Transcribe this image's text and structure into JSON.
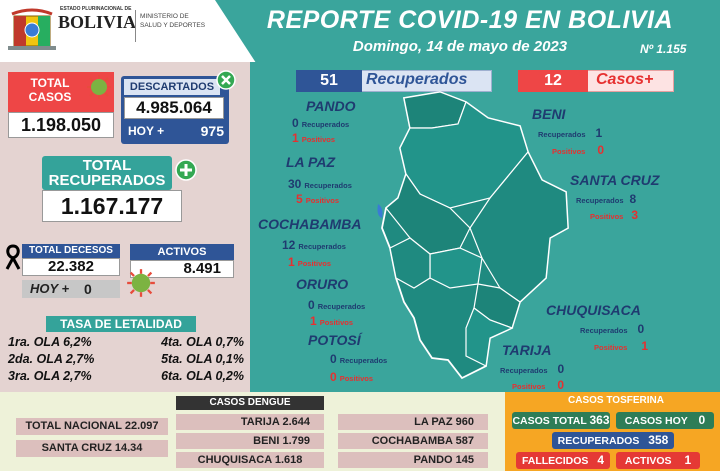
{
  "header": {
    "logo_subtitle": "ESTADO PLURINACIONAL DE",
    "logo_name": "BOLIVIA",
    "ministry": [
      "MINISTERIO DE",
      "SALUD Y DEPORTES"
    ],
    "title": "REPORTE COVID-19 EN BOLIVIA",
    "date": "Domingo, 14 de mayo de 2023",
    "report_number": "Nº 1.155"
  },
  "left": {
    "total_casos_label": "TOTAL CASOS",
    "total_casos": "1.198.050",
    "descartados_label": "DESCARTADOS",
    "descartados": "4.985.064",
    "hoy_label": "HOY +",
    "hoy_value": "975",
    "total_recuperados_label": "TOTAL RECUPERADOS",
    "total_recuperados": "1.167.177",
    "total_decesos_label": "TOTAL DECESOS",
    "total_decesos": "22.382",
    "decesos_hoy_label": "HOY +",
    "decesos_hoy": "0",
    "activos_label": "ACTIVOS",
    "activos": "8.491",
    "letalidad_title": "TASA DE LETALIDAD",
    "letalidad": [
      "1ra. OLA 6,2%",
      "4ta. OLA 0,7%",
      "2da. OLA 2,7%",
      "5ta. OLA 0,1%",
      "3ra. OLA 2,7%",
      "6ta. OLA 0,2%"
    ]
  },
  "map": {
    "recuperados_count": "51",
    "recuperados_label": "Recuperados",
    "casos_count": "12",
    "casos_label": "Casos+",
    "rec_word": "Recuperados",
    "pos_word": "Positivos",
    "regions": {
      "pando": {
        "name": "PANDO",
        "rec": "0",
        "pos": "1"
      },
      "lapaz": {
        "name": "LA PAZ",
        "rec": "30",
        "pos": "5"
      },
      "cochabamba": {
        "name": "COCHABAMBA",
        "rec": "12",
        "pos": "1"
      },
      "oruro": {
        "name": "ORURO",
        "rec": "0",
        "pos": "1"
      },
      "potosi": {
        "name": "POTOSÍ",
        "rec": "0",
        "pos": "0"
      },
      "beni": {
        "name": "BENI",
        "rec": "1",
        "pos": "0"
      },
      "santacruz": {
        "name": "SANTA CRUZ",
        "rec": "8",
        "pos": "3"
      },
      "chuquisaca": {
        "name": "CHUQUISACA",
        "rec": "0",
        "pos": "1"
      },
      "tarija": {
        "name": "TARIJA",
        "rec": "0",
        "pos": "0"
      }
    }
  },
  "dengue": {
    "title": "CASOS DENGUE",
    "total_nacional": "TOTAL NACIONAL   22.097",
    "santa_cruz": "SANTA CRUZ  14.34",
    "tarija": "TARIJA  2.644",
    "beni": "BENI  1.799",
    "chuquisaca": "CHUQUISACA  1.618",
    "lapaz": "LA PAZ  960",
    "cochabamba": "COCHABAMBA  587",
    "pando": "PANDO  145"
  },
  "tosferina": {
    "title": "CASOS TOSFERINA",
    "casos_total_label": "CASOS TOTAL",
    "casos_total": "363",
    "casos_hoy_label": "CASOS HOY",
    "casos_hoy": "0",
    "recuperados_label": "RECUPERADOS",
    "recuperados": "358",
    "fallecidos_label": "FALLECIDOS",
    "fallecidos": "4",
    "activos_label": "ACTIVOS",
    "activos": "1"
  }
}
